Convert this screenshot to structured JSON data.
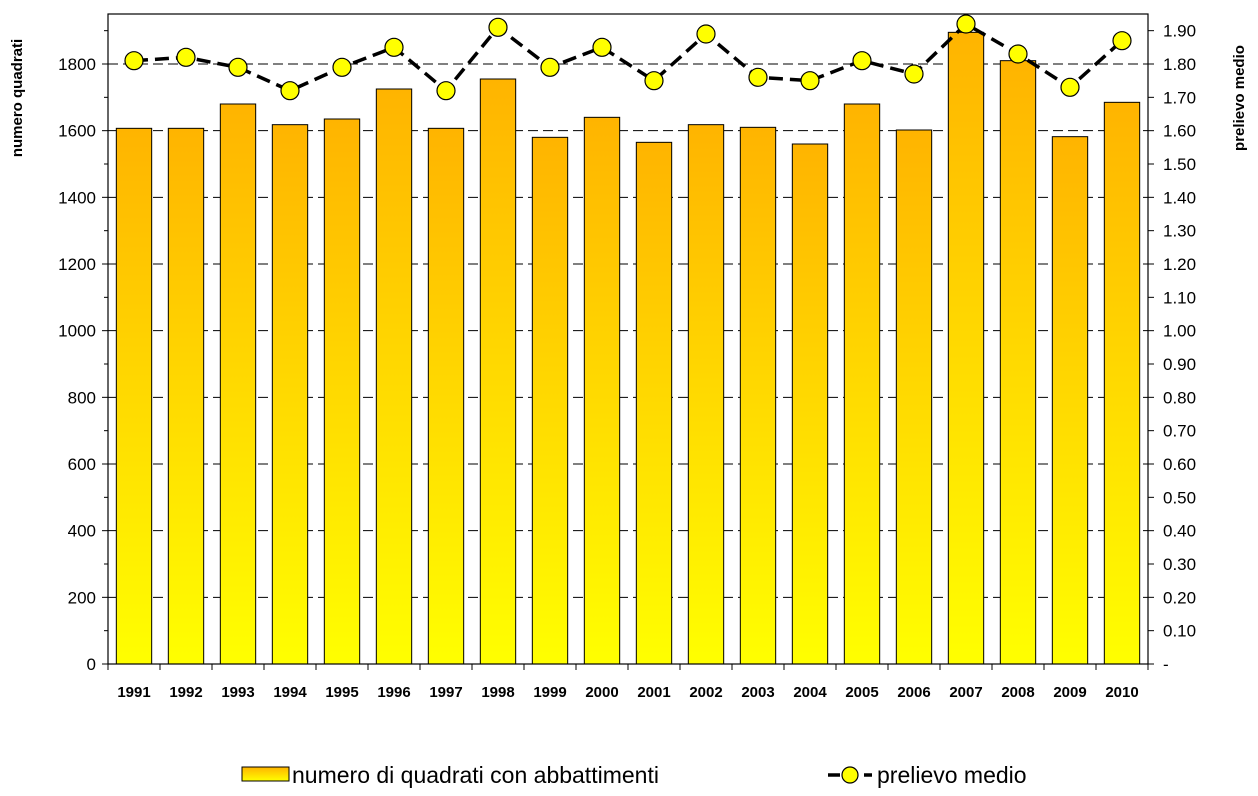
{
  "chart_data": {
    "type": "bar",
    "categories": [
      "1991",
      "1992",
      "1993",
      "1994",
      "1995",
      "1996",
      "1997",
      "1998",
      "1999",
      "2000",
      "2001",
      "2002",
      "2003",
      "2004",
      "2005",
      "2006",
      "2007",
      "2008",
      "2009",
      "2010"
    ],
    "series": [
      {
        "name": "numero di quadrati con abbattimenti",
        "type": "bar",
        "axis": "left",
        "values": [
          1607,
          1607,
          1680,
          1618,
          1635,
          1725,
          1607,
          1755,
          1580,
          1640,
          1565,
          1618,
          1610,
          1560,
          1680,
          1602,
          1895,
          1810,
          1582,
          1685
        ]
      },
      {
        "name": "prelievo medio",
        "type": "line",
        "axis": "right",
        "values": [
          1.81,
          1.82,
          1.79,
          1.72,
          1.79,
          1.85,
          1.72,
          1.91,
          1.79,
          1.85,
          1.75,
          1.89,
          1.76,
          1.75,
          1.81,
          1.77,
          1.92,
          1.83,
          1.73,
          1.87
        ]
      }
    ],
    "ylabel": "numero quadrati",
    "y2label": "prelievo medio",
    "ylim": [
      0,
      1800
    ],
    "y2lim": [
      0,
      1.9
    ],
    "yticks": [
      "0",
      "200",
      "400",
      "600",
      "800",
      "1000",
      "1200",
      "1400",
      "1600",
      "1800"
    ],
    "y2ticks": [
      "-",
      "0.10",
      "0.20",
      "0.30",
      "0.40",
      "0.50",
      "0.60",
      "0.70",
      "0.80",
      "0.90",
      "1.00",
      "1.10",
      "1.20",
      "1.30",
      "1.40",
      "1.50",
      "1.60",
      "1.70",
      "1.80",
      "1.90"
    ],
    "legend": {
      "position": "bottom",
      "bar_label": "numero di quadrati con abbattimenti",
      "line_label": "prelievo medio"
    },
    "colors": {
      "bar_top": "#FFB400",
      "bar_bottom": "#FFFF00",
      "bar_stroke": "#000000",
      "line": "#000000",
      "marker": "#FFFF00"
    },
    "grid": "horizontal dashed"
  }
}
